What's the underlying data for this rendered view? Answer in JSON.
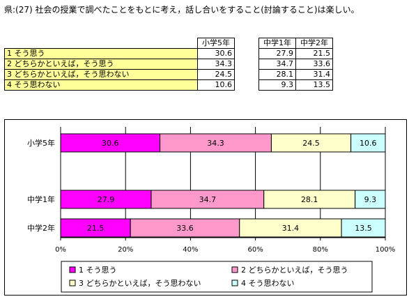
{
  "title": "県:(27) 社会の授業で調べたことをもとに考え，話し合いをすること(討論すること)は楽しい。",
  "table": {
    "columns": [
      "小学5年",
      "中学1年",
      "中学2年"
    ],
    "rows": [
      {
        "label": "1  そう思う",
        "values": [
          "30.6",
          "27.9",
          "21.5"
        ]
      },
      {
        "label": "2  どちらかといえば，そう思う",
        "values": [
          "34.3",
          "34.7",
          "33.6"
        ]
      },
      {
        "label": "3  どちらかといえば，そう思わない",
        "values": [
          "24.5",
          "28.1",
          "31.4"
        ]
      },
      {
        "label": "4  そう思わない",
        "values": [
          "10.6",
          "9.3",
          "13.5"
        ]
      }
    ]
  },
  "chart_data": {
    "type": "bar",
    "orientation": "horizontal-stacked-100",
    "categories": [
      "小学5年",
      "中学1年",
      "中学2年"
    ],
    "series": [
      {
        "name": "1  そう思う",
        "values": [
          30.6,
          27.9,
          21.5
        ],
        "color": "#ff00ff"
      },
      {
        "name": "2  どちらかといえば，そう思う",
        "values": [
          34.3,
          34.7,
          33.6
        ],
        "color": "#ff99cc"
      },
      {
        "name": "3  どちらかといえば，そう思わない",
        "values": [
          24.5,
          28.1,
          31.4
        ],
        "color": "#ffffcc"
      },
      {
        "name": "4  そう思わない",
        "values": [
          10.6,
          9.3,
          13.5
        ],
        "color": "#ccffff"
      }
    ],
    "xlim": [
      0,
      100
    ],
    "xticks": [
      "0%",
      "20%",
      "40%",
      "60%",
      "80%",
      "100%"
    ],
    "grid": true,
    "legend_position": "bottom"
  }
}
